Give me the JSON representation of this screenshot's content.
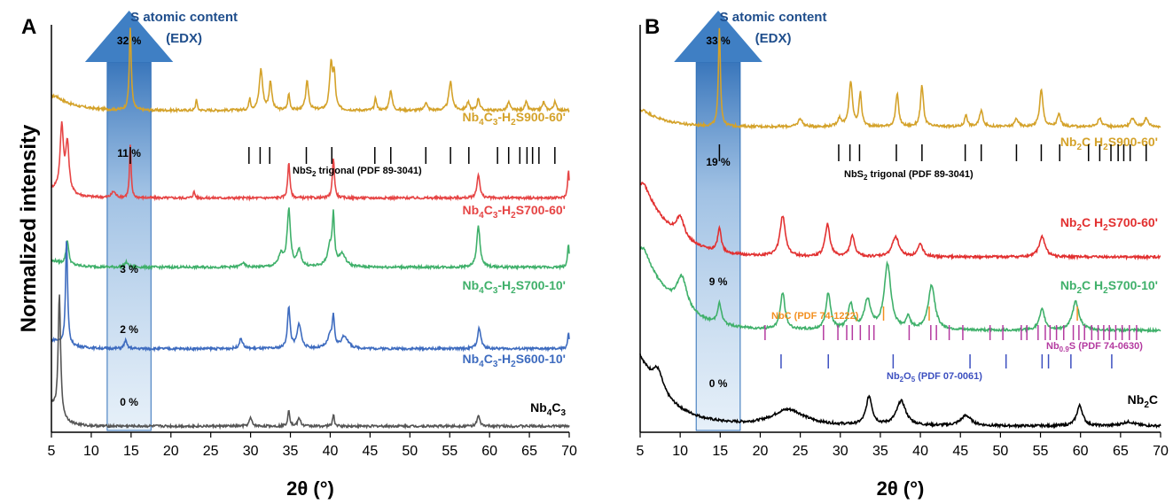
{
  "chart_data": [
    {
      "panel": "A",
      "type": "line",
      "xlabel": "2θ (°)",
      "ylabel": "Normalized intensity",
      "xlim": [
        5,
        70
      ],
      "xticks": [
        "5",
        "10",
        "15",
        "20",
        "25",
        "30",
        "35",
        "40",
        "45",
        "50",
        "55",
        "60",
        "65",
        "70"
      ],
      "arrow_title_line1": "S atomic content",
      "arrow_title_line2": "(EDX)",
      "arrow_x_range": [
        12,
        17.5
      ],
      "series": [
        {
          "name_main": "Nb",
          "name_sub1": "4",
          "name_mid": "C",
          "name_sub2": "3",
          "name_tail": "-H",
          "name_sub3": "2",
          "name_end": "S900-60'",
          "color": "#d4a22a",
          "baseline": 0.79,
          "s_content": "32 %",
          "peaks": [
            [
              14.9,
              0.2,
              0.15
            ],
            [
              23.2,
              0.03,
              0.1
            ],
            [
              29.9,
              0.03,
              0.12
            ],
            [
              31.3,
              0.1,
              0.25
            ],
            [
              32.5,
              0.07,
              0.2
            ],
            [
              34.8,
              0.04,
              0.15
            ],
            [
              37.1,
              0.07,
              0.22
            ],
            [
              40.1,
              0.11,
              0.22
            ],
            [
              40.5,
              0.08,
              0.18
            ],
            [
              45.7,
              0.03,
              0.15
            ],
            [
              47.6,
              0.05,
              0.2
            ],
            [
              52.0,
              0.02,
              0.2
            ],
            [
              55.1,
              0.07,
              0.25
            ],
            [
              57.3,
              0.02,
              0.2
            ],
            [
              58.6,
              0.03,
              0.18
            ],
            [
              62.4,
              0.02,
              0.2
            ],
            [
              64.6,
              0.02,
              0.2
            ],
            [
              66.8,
              0.02,
              0.2
            ],
            [
              68.2,
              0.02,
              0.2
            ]
          ],
          "hump": [
            5.6,
            0.035,
            1.2
          ]
        },
        {
          "name_main": "Nb",
          "name_sub1": "4",
          "name_mid": "C",
          "name_sub2": "3",
          "name_tail": "-H",
          "name_sub3": "2",
          "name_end": "S700-60'",
          "color": "#e64545",
          "baseline": 0.575,
          "s_content": "11 %",
          "peaks": [
            [
              6.3,
              0.16,
              0.25
            ],
            [
              7.0,
              0.12,
              0.25
            ],
            [
              12.8,
              0.015,
              0.3
            ],
            [
              14.9,
              0.13,
              0.12
            ],
            [
              22.9,
              0.015,
              0.15
            ],
            [
              34.8,
              0.09,
              0.15
            ],
            [
              40.4,
              0.1,
              0.15
            ],
            [
              58.6,
              0.06,
              0.2
            ],
            [
              69.9,
              0.07,
              0.12
            ]
          ],
          "hump": [
            5.5,
            0.02,
            1.0
          ]
        },
        {
          "name_main": "Nb",
          "name_sub1": "4",
          "name_mid": "C",
          "name_sub2": "3",
          "name_tail": "-H",
          "name_sub3": "2",
          "name_end": "S700-10'",
          "color": "#3fb06a",
          "baseline": 0.405,
          "s_content": "3 %",
          "peaks": [
            [
              7.0,
              0.06,
              0.2
            ],
            [
              14.4,
              0.012,
              0.25
            ],
            [
              29.0,
              0.01,
              0.3
            ],
            [
              33.8,
              0.03,
              0.35
            ],
            [
              34.8,
              0.14,
              0.25
            ],
            [
              36.1,
              0.04,
              0.3
            ],
            [
              40.0,
              0.05,
              0.4
            ],
            [
              40.4,
              0.11,
              0.15
            ],
            [
              41.5,
              0.03,
              0.5
            ],
            [
              58.6,
              0.1,
              0.25
            ],
            [
              69.9,
              0.06,
              0.12
            ]
          ],
          "hump": [
            5.5,
            0.015,
            1.0
          ]
        },
        {
          "name_main": "Nb",
          "name_sub1": "4",
          "name_mid": "C",
          "name_sub2": "3",
          "name_tail": "-H",
          "name_sub3": "2",
          "name_end": "S600-10'",
          "color": "#3d6bbf",
          "baseline": 0.205,
          "s_content": "2 %",
          "peaks": [
            [
              6.9,
              0.26,
              0.15
            ],
            [
              14.3,
              0.02,
              0.2
            ],
            [
              28.8,
              0.025,
              0.25
            ],
            [
              34.8,
              0.1,
              0.2
            ],
            [
              36.1,
              0.06,
              0.3
            ],
            [
              40.0,
              0.03,
              0.4
            ],
            [
              40.4,
              0.07,
              0.15
            ],
            [
              41.8,
              0.03,
              0.5
            ],
            [
              58.7,
              0.05,
              0.25
            ],
            [
              69.9,
              0.04,
              0.12
            ]
          ],
          "hump": [
            5.5,
            0.02,
            1.0
          ]
        },
        {
          "name_main": "Nb",
          "name_sub1": "4",
          "name_mid": "C",
          "name_sub2": "3",
          "name_tail": "",
          "name_sub3": "",
          "name_end": "",
          "color": "#555555",
          "baseline": 0.015,
          "s_content": "0 %",
          "peaks": [
            [
              6.0,
              0.3,
              0.18
            ],
            [
              30.0,
              0.02,
              0.2
            ],
            [
              34.8,
              0.04,
              0.15
            ],
            [
              36.1,
              0.02,
              0.2
            ],
            [
              40.4,
              0.03,
              0.12
            ],
            [
              58.6,
              0.025,
              0.2
            ]
          ],
          "hump": [
            5.2,
            0.05,
            0.6
          ]
        }
      ],
      "reference_patterns": [
        {
          "label_pre": "NbS",
          "label_sub": "2",
          "label_post": " trigonal (PDF 89-3041)",
          "color": "#000000",
          "positions": [
            14.9,
            29.8,
            31.2,
            32.4,
            37.0,
            40.2,
            45.6,
            47.6,
            52.0,
            55.1,
            57.4,
            61.0,
            62.4,
            63.8,
            64.7,
            65.4,
            66.2,
            68.2
          ]
        }
      ]
    },
    {
      "panel": "B",
      "type": "line",
      "xlabel": "2θ (°)",
      "ylabel": "",
      "xlim": [
        5,
        70
      ],
      "xticks": [
        "5",
        "10",
        "15",
        "20",
        "25",
        "30",
        "35",
        "40",
        "45",
        "50",
        "55",
        "60",
        "65",
        "70"
      ],
      "arrow_title_line1": "S atomic content",
      "arrow_title_line2": "(EDX)",
      "arrow_x_range": [
        12,
        17.5
      ],
      "series": [
        {
          "name_main": "Nb",
          "name_sub1": "2",
          "name_mid": "C H",
          "name_sub2": "2",
          "name_tail": "S900-60'",
          "color": "#d4a22a",
          "baseline": 0.75,
          "s_content": "33 %",
          "peaks": [
            [
              14.9,
              0.24,
              0.15
            ],
            [
              25.0,
              0.02,
              0.3
            ],
            [
              29.9,
              0.02,
              0.3
            ],
            [
              31.3,
              0.11,
              0.25
            ],
            [
              32.5,
              0.08,
              0.2
            ],
            [
              37.1,
              0.08,
              0.22
            ],
            [
              40.2,
              0.1,
              0.22
            ],
            [
              45.7,
              0.03,
              0.2
            ],
            [
              47.6,
              0.04,
              0.25
            ],
            [
              52.0,
              0.02,
              0.25
            ],
            [
              55.1,
              0.09,
              0.25
            ],
            [
              57.3,
              0.03,
              0.25
            ],
            [
              62.4,
              0.02,
              0.3
            ],
            [
              66.5,
              0.02,
              0.3
            ],
            [
              68.2,
              0.02,
              0.3
            ]
          ],
          "hump": [
            5.5,
            0.04,
            1.4
          ]
        },
        {
          "name_main": "Nb",
          "name_sub1": "2",
          "name_mid": "C H",
          "name_sub2": "2",
          "name_tail": "S700-60'",
          "color": "#e23030",
          "baseline": 0.43,
          "s_content": "19 %",
          "peaks": [
            [
              10.0,
              0.05,
              0.6
            ],
            [
              14.9,
              0.06,
              0.25
            ],
            [
              22.8,
              0.1,
              0.4
            ],
            [
              28.4,
              0.08,
              0.35
            ],
            [
              31.5,
              0.05,
              0.35
            ],
            [
              36.9,
              0.05,
              0.5
            ],
            [
              40.0,
              0.03,
              0.4
            ],
            [
              55.2,
              0.05,
              0.45
            ]
          ],
          "hump": [
            5.5,
            0.18,
            1.8
          ]
        },
        {
          "name_main": "Nb",
          "name_sub1": "2",
          "name_mid": "C H",
          "name_sub2": "2",
          "name_tail": "S700-10'",
          "color": "#3fb06a",
          "baseline": 0.25,
          "s_content": "9 %",
          "peaks": [
            [
              10.2,
              0.08,
              0.8
            ],
            [
              14.9,
              0.05,
              0.3
            ],
            [
              22.8,
              0.09,
              0.35
            ],
            [
              28.5,
              0.09,
              0.35
            ],
            [
              31.3,
              0.06,
              0.4
            ],
            [
              33.4,
              0.07,
              0.5
            ],
            [
              35.9,
              0.16,
              0.5
            ],
            [
              38.5,
              0.03,
              0.3
            ],
            [
              41.4,
              0.11,
              0.5
            ],
            [
              55.2,
              0.05,
              0.4
            ],
            [
              59.4,
              0.07,
              0.5
            ]
          ],
          "hump": [
            5.5,
            0.2,
            1.8
          ]
        },
        {
          "name_main": "Nb",
          "name_sub1": "2",
          "name_mid": "C",
          "name_sub2": "",
          "name_tail": "",
          "color": "#000000",
          "baseline": 0.015,
          "s_content": "0 %",
          "peaks": [
            [
              7.2,
              0.05,
              0.8
            ],
            [
              23.5,
              0.04,
              2.5
            ],
            [
              33.6,
              0.07,
              0.45
            ],
            [
              37.6,
              0.06,
              0.7
            ],
            [
              45.7,
              0.025,
              0.8
            ],
            [
              59.9,
              0.05,
              0.45
            ],
            [
              66.0,
              0.01,
              1.0
            ]
          ],
          "hump": [
            5.0,
            0.17,
            1.8
          ]
        }
      ],
      "reference_patterns": [
        {
          "label_pre": "NbS",
          "label_sub": "2",
          "label_post": " trigonal (PDF 89-3041)",
          "color": "#000000",
          "positions": [
            14.9,
            29.8,
            31.2,
            32.4,
            37.0,
            40.2,
            45.6,
            47.6,
            52.0,
            55.1,
            57.4,
            61.0,
            62.4,
            63.8,
            64.7,
            65.4,
            66.2,
            68.2
          ]
        },
        {
          "label_pre": "NbC (PDF 74-1222)",
          "label_sub": "",
          "label_post": "",
          "color": "#f39021",
          "positions": [
            35.4,
            41.1,
            59.6
          ]
        },
        {
          "label_pre": "Nb",
          "label_sub": "0.9",
          "label_post": "S (PDF 74-0630)",
          "color": "#b43aa0",
          "positions": [
            20.6,
            27.9,
            29.7,
            30.8,
            31.5,
            32.5,
            33.6,
            34.2,
            38.6,
            41.3,
            42.0,
            43.6,
            45.3,
            48.7,
            50.3,
            52.6,
            53.3,
            54.7,
            55.6,
            56.2,
            57.0,
            57.9,
            59.1,
            59.8,
            60.5,
            61.4,
            62.2,
            62.9,
            63.6,
            64.4,
            65.2,
            66.1,
            67.0
          ]
        },
        {
          "label_pre": "Nb",
          "label_sub": "2",
          "label_post": "O",
          "label_sub2": "5",
          "label_end": " (PDF 07-0061)",
          "color": "#3d50c0",
          "positions": [
            22.6,
            28.5,
            36.6,
            46.2,
            50.7,
            55.2,
            56.0,
            58.8,
            63.9
          ]
        }
      ]
    }
  ]
}
